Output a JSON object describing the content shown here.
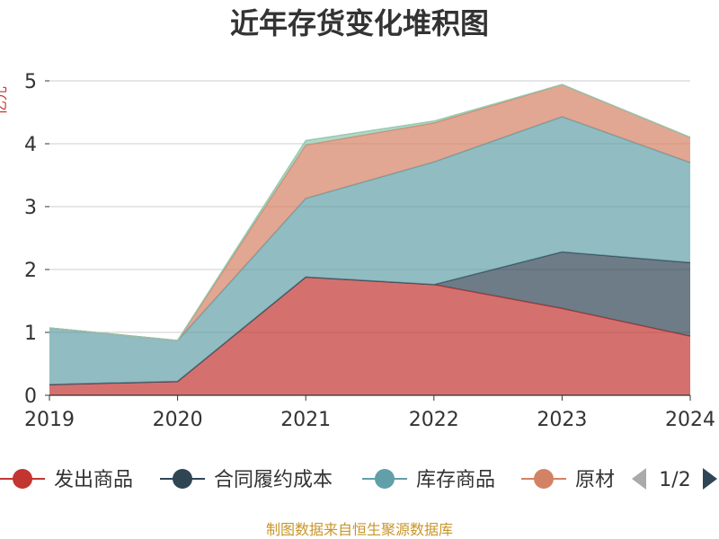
{
  "chart_data": {
    "type": "area",
    "stacked": true,
    "title": "近年存货变化堆积图",
    "ylabel": "亿元",
    "x": [
      "2019",
      "2020",
      "2021",
      "2022",
      "2023",
      "2024"
    ],
    "ylim": [
      0,
      5
    ],
    "yticks": [
      "0",
      "1",
      "2",
      "3",
      "4",
      "5"
    ],
    "grid": true,
    "legend_position": "bottom",
    "series": [
      {
        "name": "发出商品",
        "color": "#c23531",
        "values": [
          0.17,
          0.22,
          1.88,
          1.76,
          1.38,
          0.94
        ]
      },
      {
        "name": "合同履约成本",
        "color": "#2f4554",
        "values": [
          0.0,
          0.0,
          0.0,
          0.0,
          0.9,
          1.17
        ]
      },
      {
        "name": "库存商品",
        "color": "#61a0a8",
        "values": [
          0.9,
          0.65,
          1.25,
          1.95,
          2.15,
          1.59
        ]
      },
      {
        "name": "原材料",
        "color": "#d48265",
        "values": [
          0.0,
          0.0,
          0.85,
          0.62,
          0.51,
          0.4
        ]
      },
      {
        "name": "",
        "color": "#91c7ae",
        "values": [
          0.0,
          0.0,
          0.07,
          0.03,
          0.0,
          0.0
        ]
      }
    ]
  },
  "legend": {
    "visible_items": [
      "发出商品",
      "合同履约成本",
      "库存商品",
      "原材"
    ],
    "page": "1/2"
  },
  "source_text": "制图数据来自恒生聚源数据库"
}
